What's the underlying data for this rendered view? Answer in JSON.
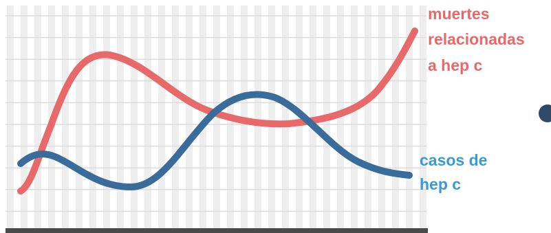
{
  "labels": {
    "deaths": {
      "lines": [
        "muertes",
        "relacionadas",
        "a hep c"
      ]
    },
    "cases": {
      "lines": [
        "casos de",
        "hep c"
      ]
    }
  }
}
